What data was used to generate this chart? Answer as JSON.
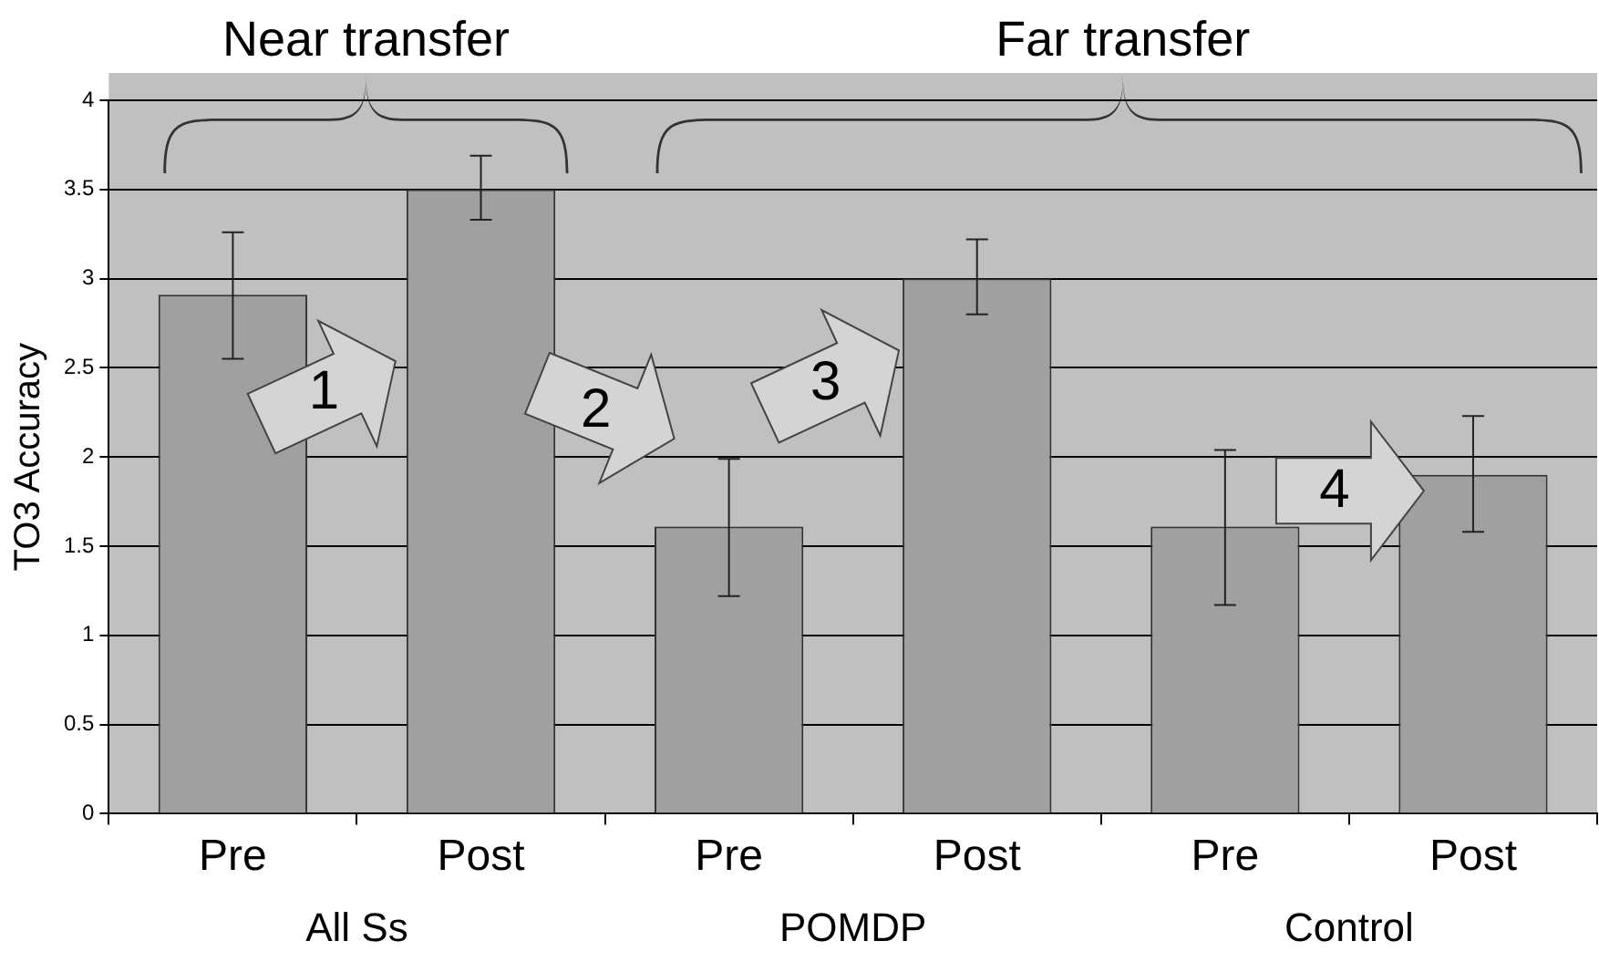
{
  "chart_data": {
    "type": "bar",
    "ylabel": "TO3 Accuracy",
    "categories": [
      "Pre",
      "Post",
      "Pre",
      "Post",
      "Pre",
      "Post"
    ],
    "values": [
      2.91,
      3.5,
      1.61,
      3.0,
      1.61,
      1.9
    ],
    "errors": [
      [
        2.55,
        3.26
      ],
      [
        3.33,
        3.69
      ],
      [
        1.22,
        1.99
      ],
      [
        2.8,
        3.22
      ],
      [
        1.17,
        2.04
      ],
      [
        1.58,
        2.23
      ]
    ],
    "color": "#a0a0a0",
    "ylim": [
      0,
      4
    ],
    "yticks": [
      0,
      0.5,
      1,
      1.5,
      2,
      2.5,
      3,
      3.5,
      4
    ],
    "grid": "y",
    "annotations": [
      "Near transfer",
      "Far transfer",
      "1",
      "2",
      "3",
      "4",
      "All Ss",
      "POMDP",
      "Control"
    ]
  }
}
